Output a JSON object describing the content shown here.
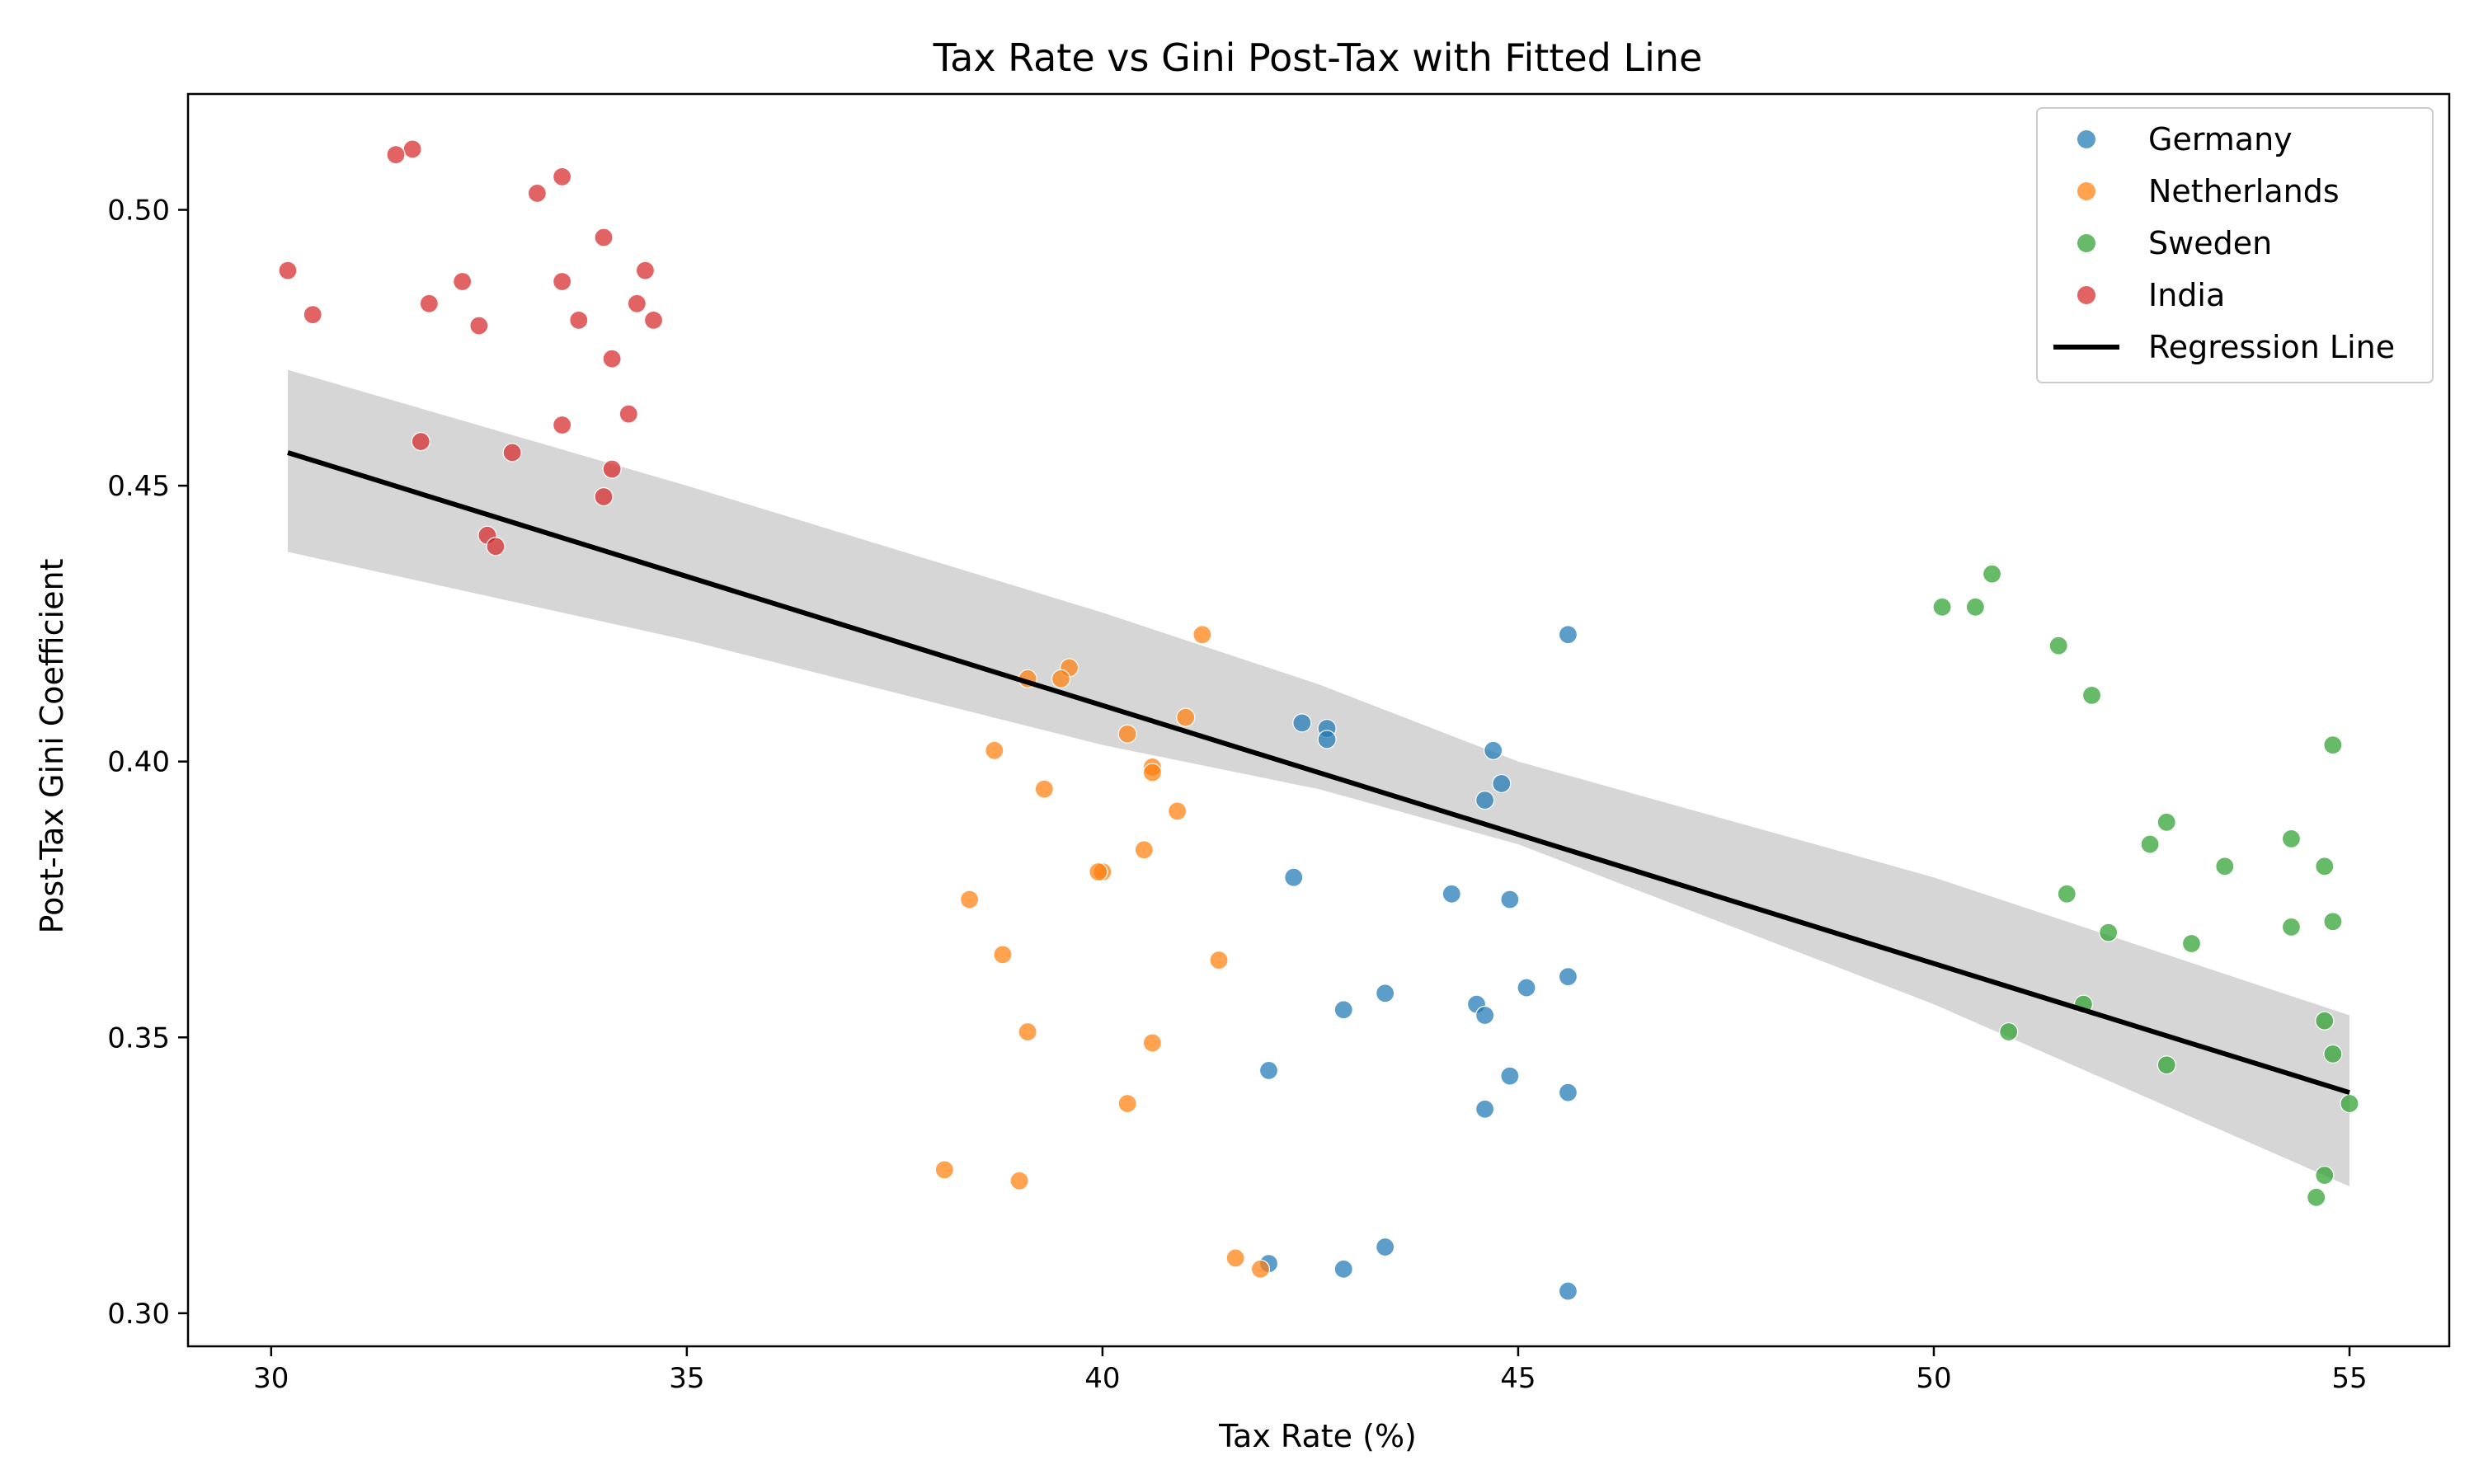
{
  "chart_data": {
    "type": "scatter",
    "title": "Tax Rate vs Gini Post-Tax with Fitted Line",
    "xlabel": "Tax Rate (%)",
    "ylabel": "Post-Tax Gini Coefficient",
    "xlim": [
      29,
      56.2
    ],
    "ylim": [
      0.294,
      0.521
    ],
    "xticks": [
      30,
      35,
      40,
      45,
      50,
      55
    ],
    "yticks": [
      0.3,
      0.35,
      0.4,
      0.45,
      0.5
    ],
    "xtick_labels": [
      "30",
      "35",
      "40",
      "45",
      "50",
      "55"
    ],
    "ytick_labels": [
      "0.30",
      "0.35",
      "0.40",
      "0.45",
      "0.50"
    ],
    "grid": false,
    "legend_position": "top-right",
    "series": [
      {
        "name": "Germany",
        "color": "#1f77b4",
        "points": [
          [
            45.6,
            0.423
          ],
          [
            42.4,
            0.407
          ],
          [
            42.7,
            0.406
          ],
          [
            42.7,
            0.404
          ],
          [
            44.7,
            0.402
          ],
          [
            44.8,
            0.396
          ],
          [
            44.6,
            0.393
          ],
          [
            42.3,
            0.379
          ],
          [
            44.2,
            0.376
          ],
          [
            44.9,
            0.375
          ],
          [
            45.6,
            0.361
          ],
          [
            45.1,
            0.359
          ],
          [
            43.4,
            0.358
          ],
          [
            44.5,
            0.356
          ],
          [
            42.9,
            0.355
          ],
          [
            44.6,
            0.354
          ],
          [
            42.0,
            0.344
          ],
          [
            44.9,
            0.343
          ],
          [
            45.6,
            0.34
          ],
          [
            44.6,
            0.337
          ],
          [
            43.4,
            0.312
          ],
          [
            42.0,
            0.309
          ],
          [
            42.9,
            0.308
          ],
          [
            45.6,
            0.304
          ]
        ]
      },
      {
        "name": "Netherlands",
        "color": "#ff7f0e",
        "points": [
          [
            41.2,
            0.423
          ],
          [
            39.6,
            0.417
          ],
          [
            39.1,
            0.415
          ],
          [
            39.5,
            0.415
          ],
          [
            41.0,
            0.408
          ],
          [
            40.3,
            0.405
          ],
          [
            38.7,
            0.402
          ],
          [
            40.6,
            0.399
          ],
          [
            40.6,
            0.398
          ],
          [
            39.3,
            0.395
          ],
          [
            40.9,
            0.391
          ],
          [
            40.5,
            0.384
          ],
          [
            40.0,
            0.38
          ],
          [
            39.95,
            0.38
          ],
          [
            38.4,
            0.375
          ],
          [
            38.8,
            0.365
          ],
          [
            41.4,
            0.364
          ],
          [
            39.1,
            0.351
          ],
          [
            40.6,
            0.349
          ],
          [
            40.3,
            0.338
          ],
          [
            38.1,
            0.326
          ],
          [
            39.0,
            0.324
          ],
          [
            41.6,
            0.31
          ],
          [
            41.9,
            0.308
          ]
        ]
      },
      {
        "name": "Sweden",
        "color": "#2ca02c",
        "points": [
          [
            50.7,
            0.434
          ],
          [
            50.1,
            0.428
          ],
          [
            50.5,
            0.428
          ],
          [
            51.5,
            0.421
          ],
          [
            51.9,
            0.412
          ],
          [
            54.8,
            0.403
          ],
          [
            52.8,
            0.389
          ],
          [
            54.3,
            0.386
          ],
          [
            52.6,
            0.385
          ],
          [
            53.5,
            0.381
          ],
          [
            54.7,
            0.381
          ],
          [
            51.6,
            0.376
          ],
          [
            54.8,
            0.371
          ],
          [
            54.3,
            0.37
          ],
          [
            52.1,
            0.369
          ],
          [
            53.1,
            0.367
          ],
          [
            51.8,
            0.356
          ],
          [
            54.7,
            0.353
          ],
          [
            50.9,
            0.351
          ],
          [
            54.8,
            0.347
          ],
          [
            52.8,
            0.345
          ],
          [
            55.0,
            0.338
          ],
          [
            54.7,
            0.325
          ],
          [
            54.6,
            0.321
          ]
        ]
      },
      {
        "name": "India",
        "color": "#d62728",
        "points": [
          [
            31.7,
            0.511
          ],
          [
            31.5,
            0.51
          ],
          [
            33.5,
            0.506
          ],
          [
            33.2,
            0.503
          ],
          [
            34.0,
            0.495
          ],
          [
            30.2,
            0.489
          ],
          [
            34.5,
            0.489
          ],
          [
            32.3,
            0.487
          ],
          [
            33.5,
            0.487
          ],
          [
            31.9,
            0.483
          ],
          [
            34.4,
            0.483
          ],
          [
            30.5,
            0.481
          ],
          [
            33.7,
            0.48
          ],
          [
            34.6,
            0.48
          ],
          [
            32.5,
            0.479
          ],
          [
            34.1,
            0.473
          ],
          [
            34.3,
            0.463
          ],
          [
            33.5,
            0.461
          ],
          [
            31.8,
            0.458
          ],
          [
            32.9,
            0.456
          ],
          [
            34.1,
            0.453
          ],
          [
            34.0,
            0.448
          ],
          [
            32.6,
            0.441
          ],
          [
            32.7,
            0.439
          ]
        ]
      }
    ],
    "regression": {
      "name": "Regression Line",
      "color": "#000000",
      "x_range": [
        30.2,
        55.0
      ],
      "line": [
        [
          30.2,
          0.456
        ],
        [
          55.0,
          0.34
        ]
      ],
      "band_upper": [
        [
          30.2,
          0.471
        ],
        [
          35,
          0.45
        ],
        [
          40,
          0.427
        ],
        [
          42.6,
          0.414
        ],
        [
          45,
          0.4
        ],
        [
          50,
          0.379
        ],
        [
          55,
          0.354
        ]
      ],
      "band_lower": [
        [
          30.2,
          0.438
        ],
        [
          35,
          0.422
        ],
        [
          40,
          0.403
        ],
        [
          42.6,
          0.395
        ],
        [
          45,
          0.385
        ],
        [
          50,
          0.356
        ],
        [
          55,
          0.323
        ]
      ]
    }
  }
}
